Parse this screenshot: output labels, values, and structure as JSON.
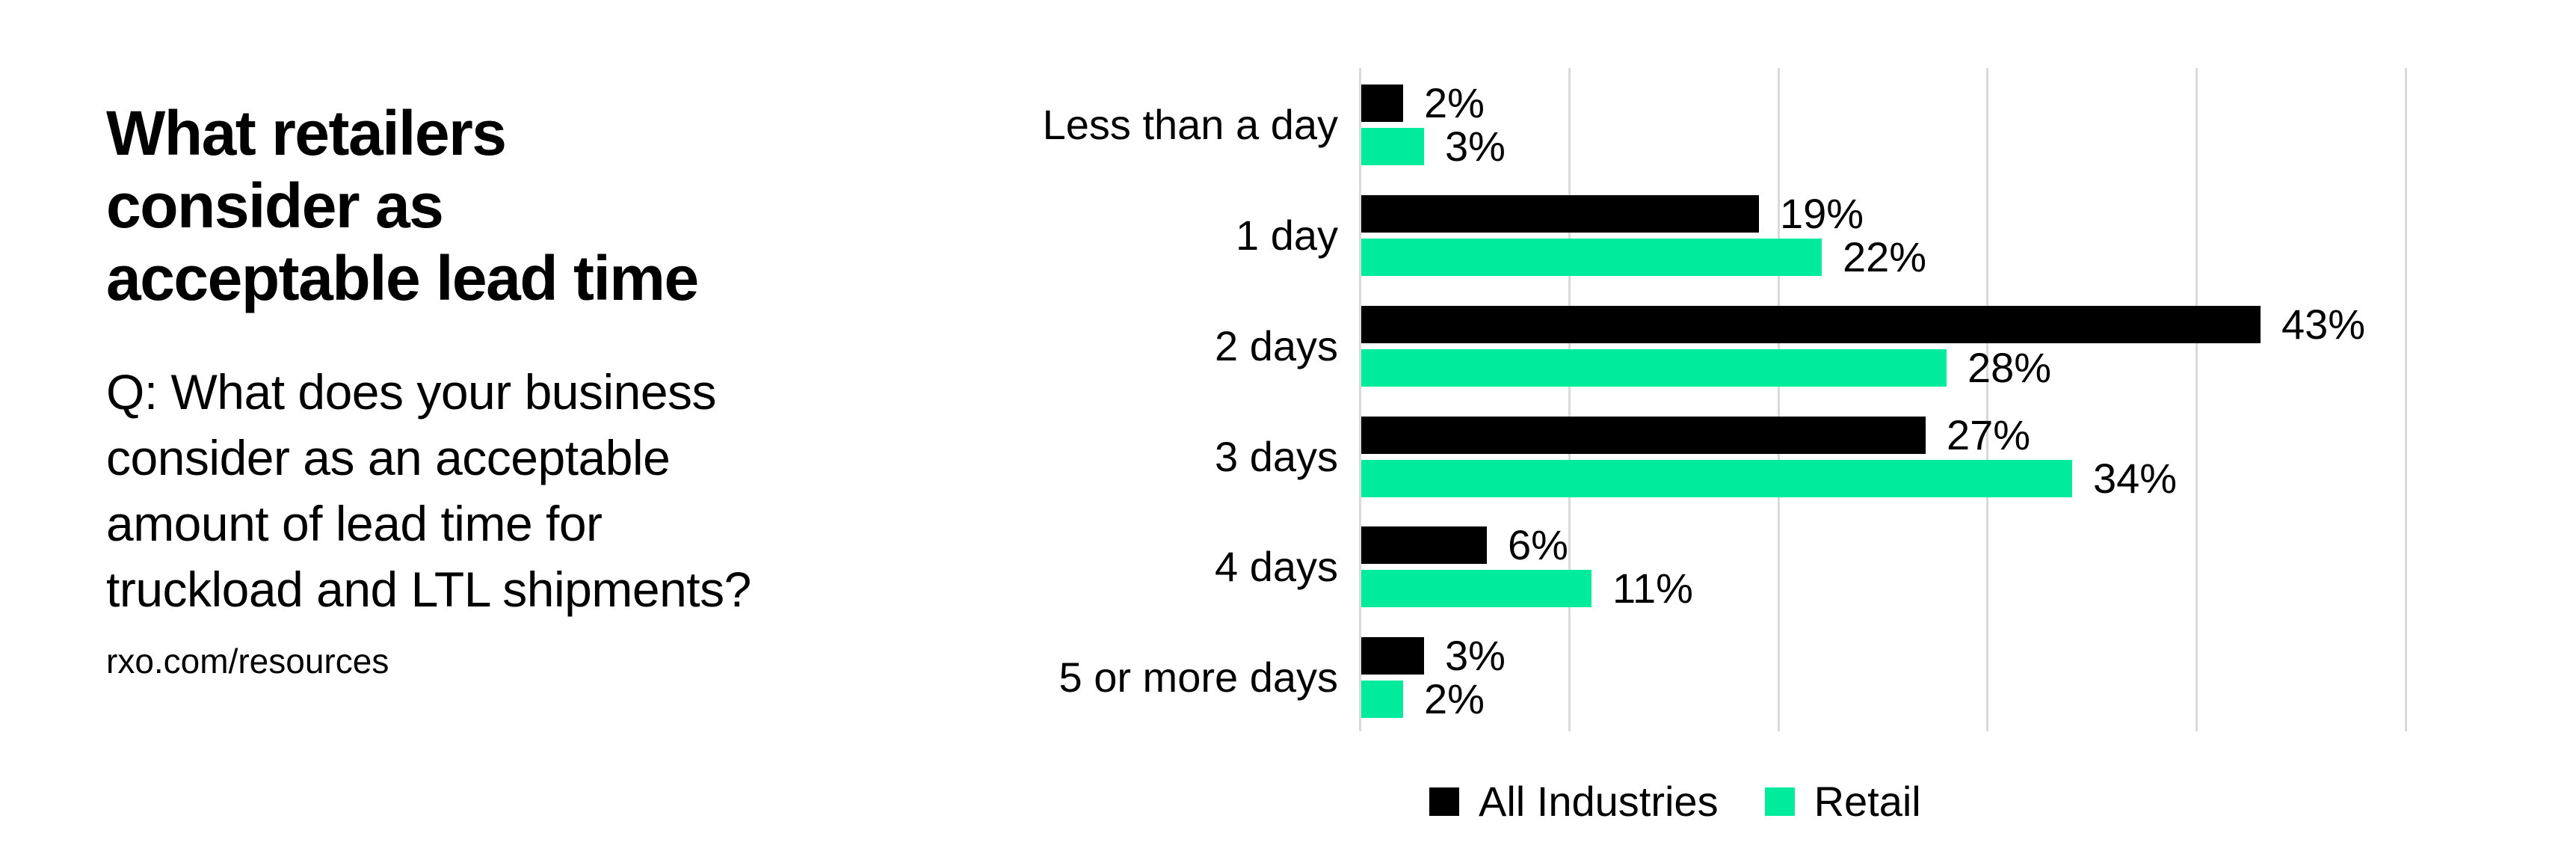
{
  "title": "What retailers\nconsider as\nacceptable lead time",
  "subtitle": "Q: What does your business\nconsider as an acceptable\namount of lead time for\ntruckload and LTL shipments?",
  "source_url": "rxo.com/resources",
  "chart_data": {
    "type": "bar",
    "orientation": "horizontal",
    "title": "What retailers consider as acceptable lead time",
    "categories": [
      "Less than a day",
      "1 day",
      "2 days",
      "3 days",
      "4 days",
      "5 or more days"
    ],
    "series": [
      {
        "name": "All Industries",
        "color": "#000000",
        "values": [
          2,
          19,
          43,
          27,
          6,
          3
        ]
      },
      {
        "name": "Retail",
        "color": "#00EC9D",
        "values": [
          3,
          22,
          28,
          34,
          11,
          2
        ]
      }
    ],
    "value_suffix": "%",
    "xlim": [
      0,
      50
    ],
    "gridline_step": 10,
    "grid": true,
    "legend_position": "bottom",
    "axis_labels_shown": false
  },
  "colors": {
    "background": "#FFFFFF",
    "text": "#000000",
    "gridline": "#DADADA",
    "accent_green": "#00EC9D",
    "accent_black": "#000000"
  }
}
